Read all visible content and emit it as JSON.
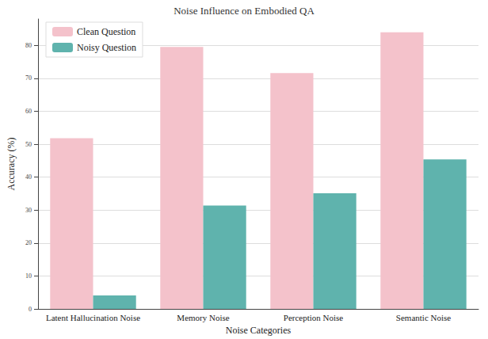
{
  "chart_data": {
    "type": "bar",
    "title": "Noise Influence on Embodied QA",
    "x_label": "Noise Categories",
    "y_label": "Accuracy (%)",
    "categories": [
      "Latent Hallucination Noise",
      "Memory Noise",
      "Perception Noise",
      "Semantic Noise"
    ],
    "series": [
      {
        "name": "Clean Question",
        "color": "#f4c2cb",
        "values": [
          51.8,
          79.5,
          71.6,
          84.0
        ]
      },
      {
        "name": "Noisy Question",
        "color": "#5fb3ad",
        "values": [
          4.1,
          31.4,
          35.1,
          45.4
        ]
      }
    ],
    "ylim": [
      0,
      88
    ],
    "yticks": [
      0,
      10,
      20,
      30,
      40,
      50,
      60,
      70,
      80
    ],
    "grid": true,
    "legend": "upper left"
  }
}
